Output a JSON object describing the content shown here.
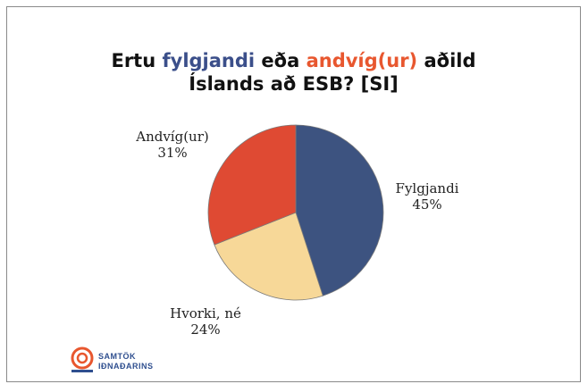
{
  "title": {
    "part1": "Ertu ",
    "fylgjandi": "fylgjandi",
    "part2": " eða ",
    "andvigur": "andvíg(ur)",
    "part3": " aðild",
    "line2": "Íslands að ESB? [SI]"
  },
  "chart_data": {
    "type": "pie",
    "title": "Ertu fylgjandi eða andvíg(ur) aðild Íslands að ESB? [SI]",
    "slices": [
      {
        "label": "Fylgjandi",
        "value": 45,
        "display": "45%",
        "color": "#3d5380"
      },
      {
        "label": "Hvorki, né",
        "value": 24,
        "display": "24%",
        "color": "#f7d898"
      },
      {
        "label": "Andvíg(ur)",
        "value": 31,
        "display": "31%",
        "color": "#df4a33"
      }
    ],
    "legend": "none"
  },
  "logo": {
    "line1": "SAMTÖK",
    "line2": "IÐNAÐARINS",
    "color": "#e8572f"
  }
}
